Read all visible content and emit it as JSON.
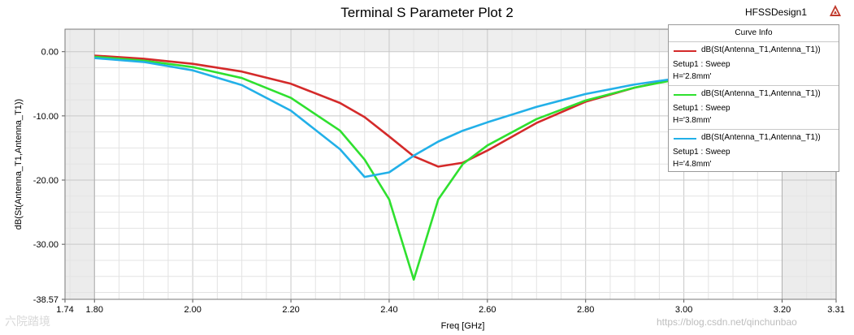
{
  "window": {
    "title": "Terminal S Parameter Plot 2",
    "design_name": "HFSSDesign1",
    "logo_icon": "ansys-triangle-icon",
    "watermark": "https://blog.csdn.net/qinchunbao",
    "brand_watermark": "六院踏境"
  },
  "legend": {
    "header": "Curve Info",
    "entries": [
      {
        "name": "dB(St(Antenna_T1,Antenna_T1))",
        "setup": "Setup1 : Sweep",
        "variable": "H='2.8mm'",
        "color": "#d42a2a"
      },
      {
        "name": "dB(St(Antenna_T1,Antenna_T1))",
        "setup": "Setup1 : Sweep",
        "variable": "H='3.8mm'",
        "color": "#2fe02f"
      },
      {
        "name": "dB(St(Antenna_T1,Antenna_T1))",
        "setup": "Setup1 : Sweep",
        "variable": "H='4.8mm'",
        "color": "#22b0e8"
      }
    ]
  },
  "chart_data": {
    "type": "line",
    "title": "Terminal S Parameter Plot 2",
    "xlabel": "Freq [GHz]",
    "ylabel": "dB(St(Antenna_T1,Antenna_T1))",
    "xlim": [
      1.74,
      3.31
    ],
    "ylim": [
      -38.57,
      3.5
    ],
    "x_ticks": [
      "1.74",
      "1.80",
      "2.00",
      "2.20",
      "2.40",
      "2.60",
      "2.80",
      "3.00",
      "3.20",
      "3.31"
    ],
    "y_ticks": [
      "0.00",
      "-10.00",
      "-20.00",
      "-30.00",
      "-38.57"
    ],
    "grid": true,
    "sweep_range": [
      1.8,
      3.2
    ],
    "legend_position": "top-right",
    "series": [
      {
        "name": "dB(St(Antenna_T1,Antenna_T1)) Setup1 : Sweep H='2.8mm'",
        "color": "#d42a2a",
        "x": [
          1.8,
          1.9,
          2.0,
          2.1,
          2.2,
          2.3,
          2.35,
          2.4,
          2.45,
          2.5,
          2.55,
          2.6,
          2.7,
          2.8,
          2.9,
          3.0,
          3.1
        ],
        "y": [
          -0.6,
          -1.1,
          -1.9,
          -3.1,
          -5.0,
          -8.0,
          -10.2,
          -13.2,
          -16.3,
          -17.9,
          -17.3,
          -15.4,
          -11.1,
          -7.8,
          -5.6,
          -4.0,
          -2.9
        ]
      },
      {
        "name": "dB(St(Antenna_T1,Antenna_T1)) Setup1 : Sweep H='3.8mm'",
        "color": "#2fe02f",
        "x": [
          1.8,
          1.9,
          2.0,
          2.1,
          2.2,
          2.3,
          2.35,
          2.4,
          2.45,
          2.5,
          2.55,
          2.6,
          2.7,
          2.8,
          2.9,
          3.0,
          3.1
        ],
        "y": [
          -0.8,
          -1.4,
          -2.4,
          -4.1,
          -7.2,
          -12.3,
          -16.8,
          -23.0,
          -35.5,
          -23.0,
          -17.5,
          -14.6,
          -10.5,
          -7.6,
          -5.6,
          -4.1,
          -3.1
        ]
      },
      {
        "name": "dB(St(Antenna_T1,Antenna_T1)) Setup1 : Sweep H='4.8mm'",
        "color": "#22b0e8",
        "x": [
          1.8,
          1.9,
          2.0,
          2.1,
          2.2,
          2.3,
          2.35,
          2.4,
          2.45,
          2.5,
          2.55,
          2.6,
          2.7,
          2.8,
          2.9,
          3.0,
          3.1
        ],
        "y": [
          -1.0,
          -1.6,
          -2.9,
          -5.2,
          -9.2,
          -15.2,
          -19.5,
          -18.8,
          -16.2,
          -14.0,
          -12.3,
          -11.0,
          -8.6,
          -6.6,
          -5.1,
          -4.0,
          -3.1
        ]
      }
    ]
  }
}
